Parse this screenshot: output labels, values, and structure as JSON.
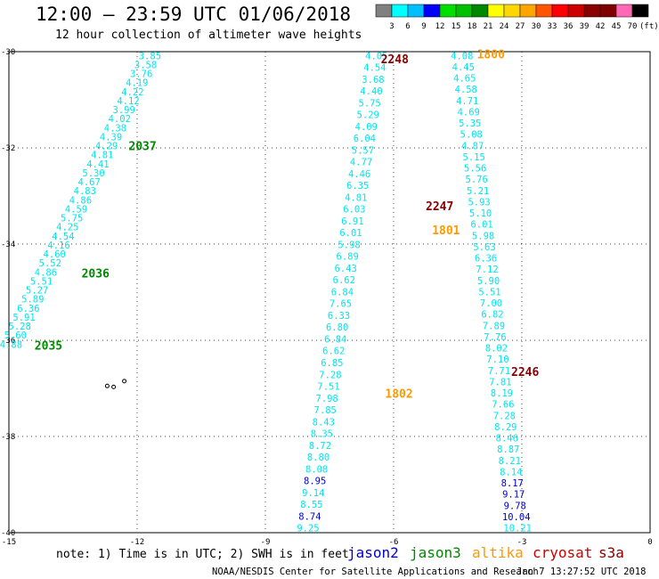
{
  "header": {
    "title": "12:00 — 23:59 UTC 01/06/2018",
    "subtitle": "12 hour collection of altimeter wave heights"
  },
  "colorbar": {
    "labels": [
      "3",
      "6",
      "9",
      "12",
      "15",
      "18",
      "21",
      "24",
      "27",
      "30",
      "33",
      "36",
      "39",
      "42",
      "45",
      "70"
    ],
    "unit": "(ft)",
    "colors": [
      "#808080",
      "#00ffff",
      "#00bfff",
      "#0000ff",
      "#00e000",
      "#00c000",
      "#008800",
      "#ffff00",
      "#ffd700",
      "#ffa500",
      "#ff5500",
      "#ff0000",
      "#cc0000",
      "#8b0000",
      "#800000",
      "#ff69b4",
      "#000000"
    ]
  },
  "footer": {
    "note": "note: 1) Time is in UTC; 2) SWH is in feet",
    "credit": "NOAA/NESDIS Center for Satellite Applications and Research",
    "timestamp": "Jan  7 13:27:52 UTC 2018"
  },
  "legend": [
    {
      "name": "jason2",
      "color": "#0000cc"
    },
    {
      "name": "jason3",
      "color": "#008800"
    },
    {
      "name": "altika",
      "color": "#ff9900"
    },
    {
      "name": "cryosat",
      "color": "#cc0000"
    },
    {
      "name": "s3a",
      "color": "#880000"
    }
  ],
  "chart_data": {
    "type": "scatter",
    "xlim": [
      -15,
      0
    ],
    "ylim": [
      -40,
      -30
    ],
    "xticks": [
      -15,
      -12,
      -9,
      -6,
      -3,
      0
    ],
    "yticks": [
      -30,
      -32,
      -34,
      -36,
      -38,
      -40
    ],
    "grid": true,
    "land": [
      {
        "x": -12.3,
        "y": -36.85
      },
      {
        "x": -12.55,
        "y": -36.97
      },
      {
        "x": -12.7,
        "y": -36.95
      }
    ],
    "times": [
      {
        "label": "2037",
        "x": -12.2,
        "y": -31.95,
        "color": "#008800"
      },
      {
        "label": "2036",
        "x": -13.3,
        "y": -34.6,
        "color": "#008800"
      },
      {
        "label": "2035",
        "x": -14.4,
        "y": -36.1,
        "color": "#008800"
      },
      {
        "label": "2248",
        "x": -6.3,
        "y": -30.15,
        "color": "#880000"
      },
      {
        "label": "2247",
        "x": -5.25,
        "y": -33.2,
        "color": "#880000"
      },
      {
        "label": "2246",
        "x": -3.25,
        "y": -36.65,
        "color": "#880000"
      },
      {
        "label": "1800",
        "x": -4.05,
        "y": -30.05,
        "color": "#ff9900"
      },
      {
        "label": "1801",
        "x": -5.1,
        "y": -33.7,
        "color": "#ff9900"
      },
      {
        "label": "1802",
        "x": -6.2,
        "y": -37.1,
        "color": "#ff9900"
      }
    ],
    "series": [
      {
        "name": "jason3",
        "color": "#00e5ee",
        "x0": -11.7,
        "y0": -30.08,
        "x1": -14.95,
        "y1": -36.08,
        "values": [
          "3.85",
          "3.58",
          "3.76",
          "4.19",
          "4.22",
          "4.12",
          "3.99",
          "4.02",
          "4.38",
          "4.39",
          "4.29",
          "4.81",
          "4.41",
          "5.30",
          "4.67",
          "4.83",
          "4.86",
          "4.59",
          "5.75",
          "4.25",
          "4.54",
          "4.16",
          "4.60",
          "5.52",
          "4.86",
          "5.51",
          "5.27",
          "5.89",
          "6.36",
          "5.91",
          "5.28",
          "5.60",
          "4.88"
        ]
      },
      {
        "name": "cryosat",
        "color": "#00e5ee",
        "x0": -4.4,
        "y0": -30.08,
        "x1": -3.1,
        "y1": -39.9,
        "values": [
          "4.08",
          "4.45",
          "4.65",
          "4.58",
          "4.71",
          "4.69",
          "5.35",
          "5.08",
          "4.87",
          "5.15",
          "5.56",
          "5.76",
          "5.21",
          "5.93",
          "5.10",
          "6.01",
          "5.98",
          "5.63",
          "6.36",
          "7.12",
          "5.90",
          "5.51",
          "7.00",
          "6.82",
          "7.89",
          "7.76",
          "8.02",
          "7.10",
          "7.71",
          "7.81",
          "8.19",
          "7.66",
          "7.28",
          "8.29",
          "8.46",
          "8.87",
          "8.21",
          "8.14",
          "8.17",
          "9.17",
          "9.78",
          "10.04",
          "10.21"
        ],
        "colors": {
          "39": "#0000cc",
          "40": "#0000cc",
          "41": "#0000cc",
          "42": "#0000cc"
        }
      },
      {
        "name": "altika",
        "color": "#00e5ee",
        "x0": -6.4,
        "y0": -30.08,
        "x1": -8.0,
        "y1": -39.9,
        "values": [
          "4.05",
          "4.54",
          "3.68",
          "4.40",
          "5.75",
          "5.29",
          "4.09",
          "6.04",
          "5.57",
          "4.77",
          "4.46",
          "6.35",
          "4.81",
          "6.03",
          "6.91",
          "6.01",
          "5.98",
          "6.89",
          "6.43",
          "6.62",
          "6.84",
          "7.65",
          "6.33",
          "6.80",
          "6.84",
          "6.62",
          "6.85",
          "7.28",
          "7.51",
          "7.98",
          "7.85",
          "8.43",
          "8.35",
          "8.72",
          "8.80",
          "8.08",
          "8.95",
          "9.14",
          "8.55",
          "8.74",
          "9.25"
        ],
        "colors": {
          "37": "#0000cc",
          "40": "#0000cc"
        }
      }
    ]
  }
}
